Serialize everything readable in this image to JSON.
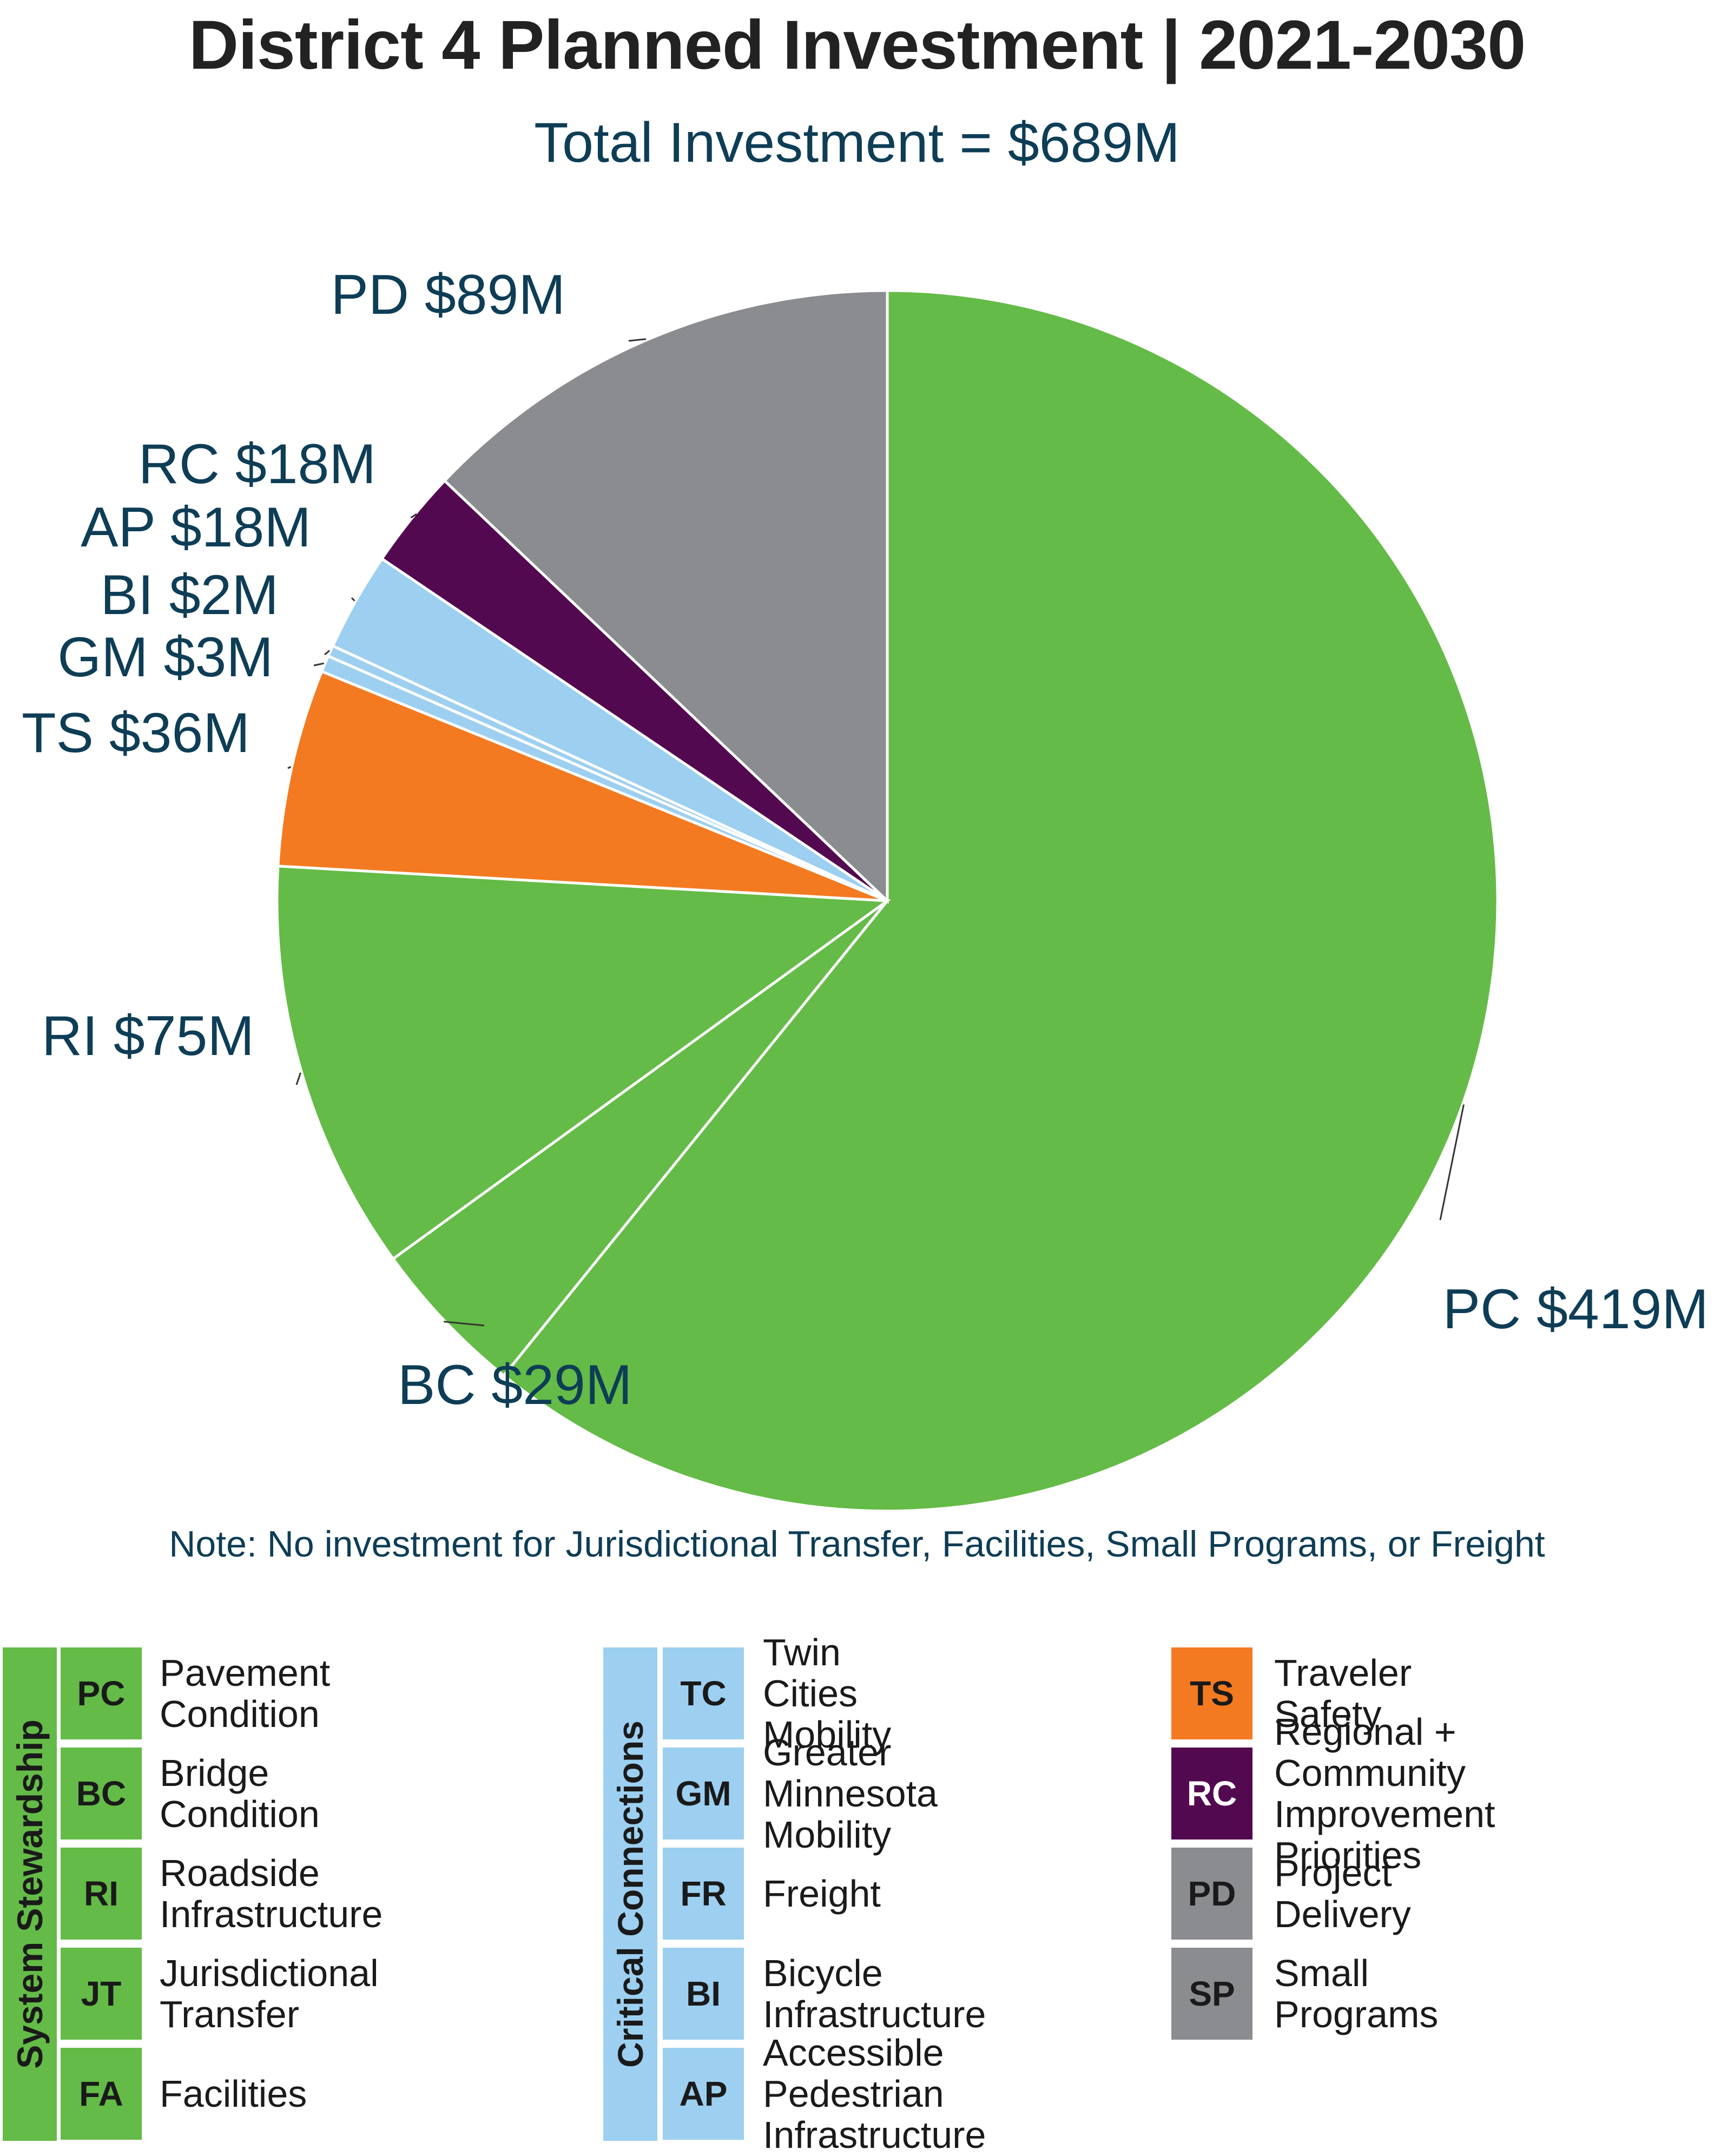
{
  "chart_data": {
    "type": "pie",
    "title": "District 4 Planned Investment | 2021-2030",
    "subtitle": "Total Investment = $689M",
    "slices": [
      {
        "code": "PC",
        "value": 419,
        "label": "PC $419M",
        "color": "#64bb47"
      },
      {
        "code": "BC",
        "value": 29,
        "label": "BC $29M",
        "color": "#64bb47"
      },
      {
        "code": "RI",
        "value": 75,
        "label": "RI $75M",
        "color": "#64bb47"
      },
      {
        "code": "TS",
        "value": 36,
        "label": "TS $36M",
        "color": "#f37a21"
      },
      {
        "code": "GM",
        "value": 3,
        "label": "GM $3M",
        "color": "#9dcff0"
      },
      {
        "code": "BI",
        "value": 2,
        "label": "BI $2M",
        "color": "#9dcff0"
      },
      {
        "code": "AP",
        "value": 18,
        "label": "AP $18M",
        "color": "#9dcff0"
      },
      {
        "code": "RC",
        "value": 18,
        "label": "RC $18M",
        "color": "#53094f"
      },
      {
        "code": "PD",
        "value": 89,
        "label": "PD $89M",
        "color": "#8a8c8f"
      }
    ],
    "note": "Note: No investment for Jurisdictional Transfer, Facilities, Small Programs, or Freight"
  },
  "legend": {
    "groups": [
      {
        "name": "System Stewardship",
        "color": "#64bb47",
        "items": [
          {
            "code": "PC",
            "label": "Pavement Condition"
          },
          {
            "code": "BC",
            "label": "Bridge Condition"
          },
          {
            "code": "RI",
            "label": "Roadside Infrastructure"
          },
          {
            "code": "JT",
            "label": "Jurisdictional Transfer"
          },
          {
            "code": "FA",
            "label": "Facilities"
          }
        ]
      },
      {
        "name": "Critical Connections",
        "color": "#9dcff0",
        "items": [
          {
            "code": "TC",
            "label": "Twin Cities Mobility"
          },
          {
            "code": "GM",
            "label": "Greater Minnesota\nMobility"
          },
          {
            "code": "FR",
            "label": "Freight"
          },
          {
            "code": "BI",
            "label": "Bicycle Infrastructure"
          },
          {
            "code": "AP",
            "label": "Accessible Pedestrian\nInfrastructure"
          }
        ]
      },
      {
        "name": "",
        "items": [
          {
            "code": "TS",
            "label": "Traveler Safety",
            "color": "#f37a21"
          },
          {
            "code": "RC",
            "label": "Regional + Community\nImprovement Priorities",
            "color": "#53094f",
            "text_color": "#ffffff"
          },
          {
            "code": "PD",
            "label": "Project Delivery",
            "color": "#8a8c8f"
          },
          {
            "code": "SP",
            "label": "Small Programs",
            "color": "#8a8c8f"
          }
        ]
      }
    ]
  }
}
